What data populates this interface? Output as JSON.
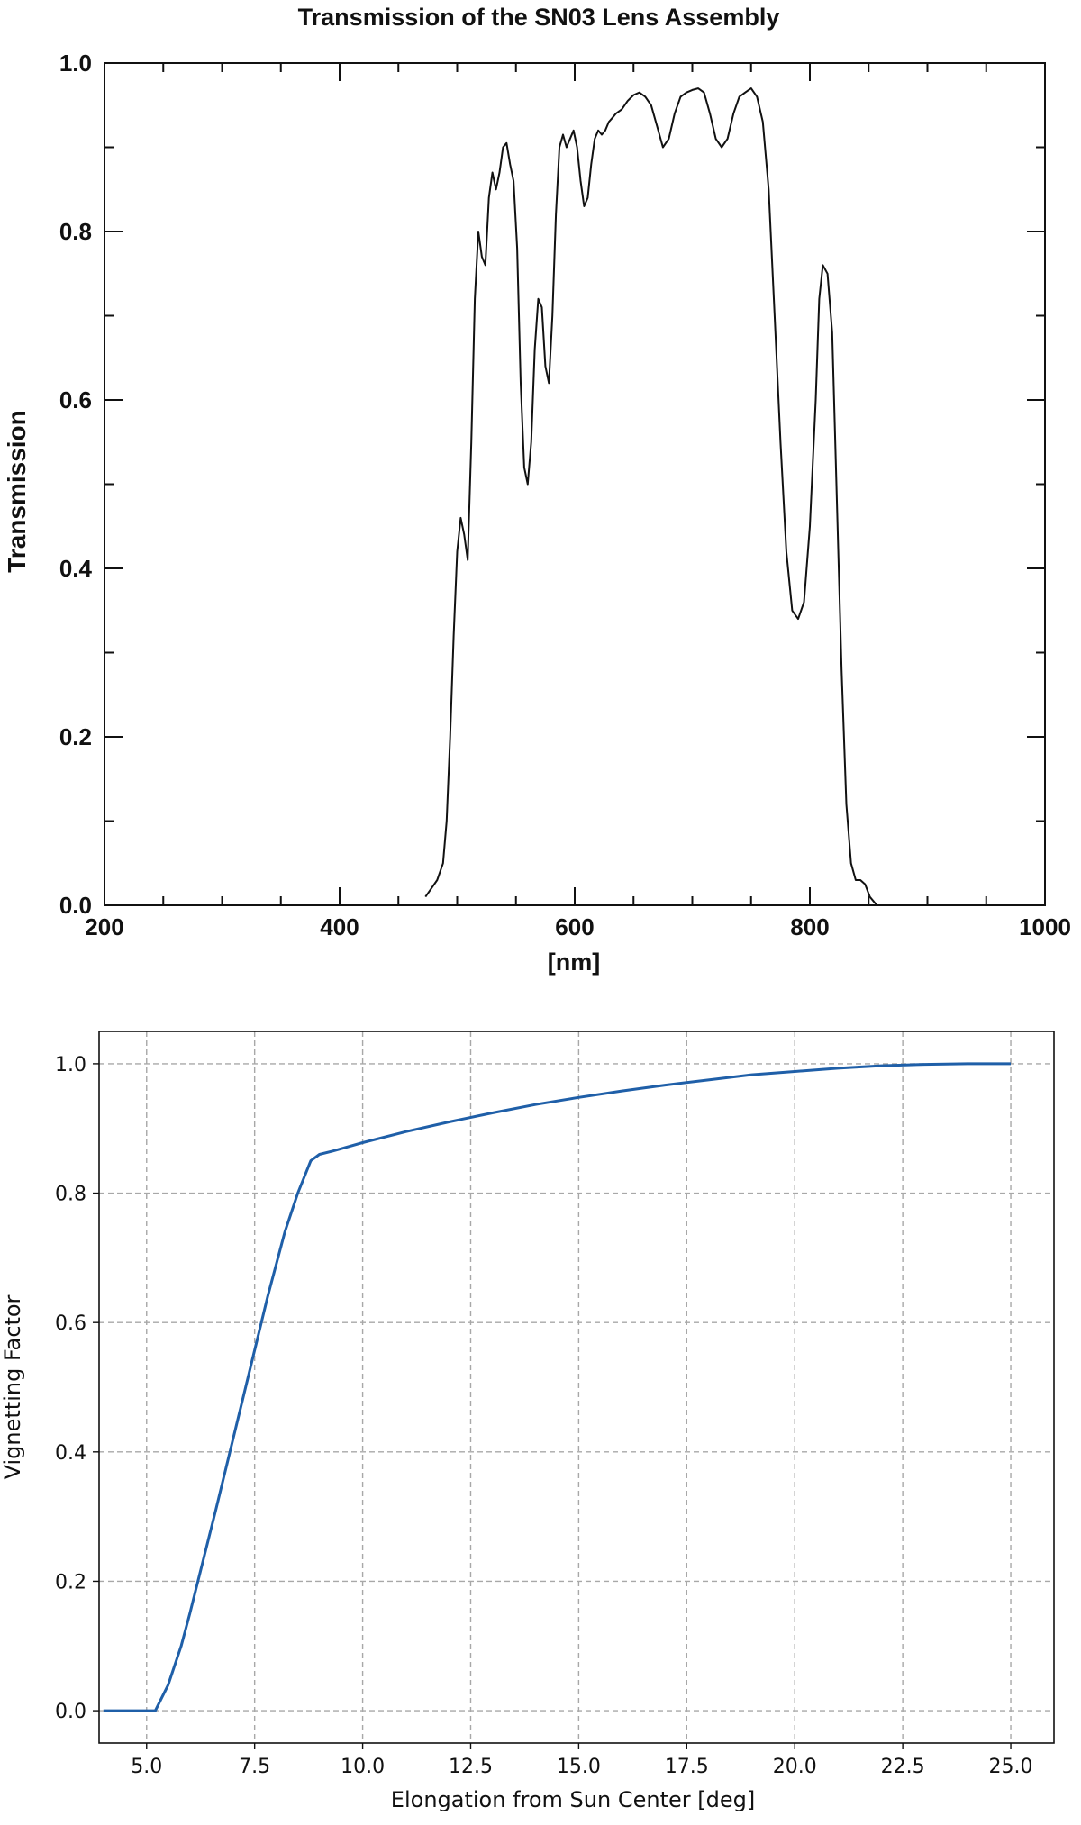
{
  "chart_data": [
    {
      "type": "line",
      "title": "Transmission of the SN03 Lens Assembly",
      "xlabel": "[nm]",
      "ylabel": "Transmission",
      "xlim": [
        200,
        1000
      ],
      "ylim": [
        0.0,
        1.0
      ],
      "x_ticks": [
        "200",
        "400",
        "600",
        "800",
        "1000"
      ],
      "y_ticks": [
        "0.0",
        "0.2",
        "0.4",
        "0.6",
        "0.8",
        "1.0"
      ],
      "grid": false,
      "color": "#111111",
      "series": [
        {
          "x": [
            473,
            478,
            483,
            488,
            491,
            494,
            497,
            500,
            503,
            506,
            509,
            512,
            515,
            518,
            521,
            524,
            527,
            530,
            533,
            536,
            539,
            542,
            545,
            548,
            551,
            554,
            557,
            560,
            563,
            566,
            569,
            572,
            575,
            578,
            581,
            584,
            587,
            590,
            593,
            596,
            599,
            602,
            605,
            608,
            611,
            614,
            617,
            620,
            623,
            626,
            629,
            632,
            635,
            640,
            645,
            650,
            655,
            660,
            665,
            670,
            675,
            680,
            685,
            690,
            695,
            700,
            705,
            710,
            715,
            720,
            725,
            730,
            735,
            740,
            745,
            750,
            755,
            760,
            765,
            770,
            775,
            780,
            785,
            790,
            795,
            800,
            805,
            808,
            811,
            815,
            819,
            823,
            827,
            831,
            835,
            839,
            843,
            847,
            851,
            854,
            857,
            860,
            863,
            866,
            868
          ],
          "y": [
            0.01,
            0.02,
            0.03,
            0.05,
            0.1,
            0.2,
            0.32,
            0.42,
            0.46,
            0.44,
            0.41,
            0.55,
            0.72,
            0.8,
            0.77,
            0.76,
            0.84,
            0.87,
            0.85,
            0.87,
            0.9,
            0.905,
            0.88,
            0.86,
            0.78,
            0.62,
            0.52,
            0.5,
            0.55,
            0.66,
            0.72,
            0.71,
            0.64,
            0.62,
            0.7,
            0.82,
            0.9,
            0.915,
            0.9,
            0.91,
            0.92,
            0.9,
            0.86,
            0.83,
            0.84,
            0.88,
            0.91,
            0.92,
            0.915,
            0.92,
            0.93,
            0.935,
            0.94,
            0.945,
            0.955,
            0.962,
            0.965,
            0.96,
            0.95,
            0.925,
            0.9,
            0.91,
            0.94,
            0.96,
            0.965,
            0.968,
            0.97,
            0.965,
            0.94,
            0.91,
            0.9,
            0.91,
            0.94,
            0.96,
            0.965,
            0.97,
            0.96,
            0.93,
            0.85,
            0.7,
            0.55,
            0.42,
            0.35,
            0.34,
            0.36,
            0.45,
            0.6,
            0.72,
            0.76,
            0.75,
            0.68,
            0.48,
            0.28,
            0.12,
            0.05,
            0.03,
            0.03,
            0.025,
            0.01,
            0.005,
            0.0,
            0.0,
            0.0,
            0.0,
            0.0
          ]
        }
      ]
    },
    {
      "type": "line",
      "title": "",
      "xlabel": "Elongation from Sun Center [deg]",
      "ylabel": "Vignetting Factor",
      "xlim": [
        3.9,
        26.0
      ],
      "ylim": [
        -0.05,
        1.05
      ],
      "x_ticks": [
        "5.0",
        "7.5",
        "10.0",
        "12.5",
        "15.0",
        "17.5",
        "20.0",
        "22.5",
        "25.0"
      ],
      "y_ticks": [
        "0.0",
        "0.2",
        "0.4",
        "0.6",
        "0.8",
        "1.0"
      ],
      "grid": true,
      "color": "#1f5fa8",
      "series": [
        {
          "x": [
            4.0,
            4.5,
            5.0,
            5.2,
            5.5,
            5.8,
            6.0,
            6.3,
            6.6,
            7.0,
            7.4,
            7.8,
            8.2,
            8.5,
            8.8,
            9.0,
            9.3,
            10.0,
            11.0,
            12.0,
            13.0,
            14.0,
            15.0,
            16.0,
            17.0,
            18.0,
            19.0,
            20.0,
            21.0,
            22.0,
            23.0,
            24.0,
            25.0
          ],
          "y": [
            0.0,
            0.0,
            0.0,
            0.0,
            0.04,
            0.1,
            0.15,
            0.23,
            0.31,
            0.42,
            0.53,
            0.64,
            0.74,
            0.8,
            0.85,
            0.86,
            0.865,
            0.878,
            0.895,
            0.91,
            0.924,
            0.937,
            0.948,
            0.958,
            0.967,
            0.975,
            0.983,
            0.988,
            0.993,
            0.997,
            0.999,
            1.0,
            1.0
          ]
        }
      ]
    }
  ]
}
